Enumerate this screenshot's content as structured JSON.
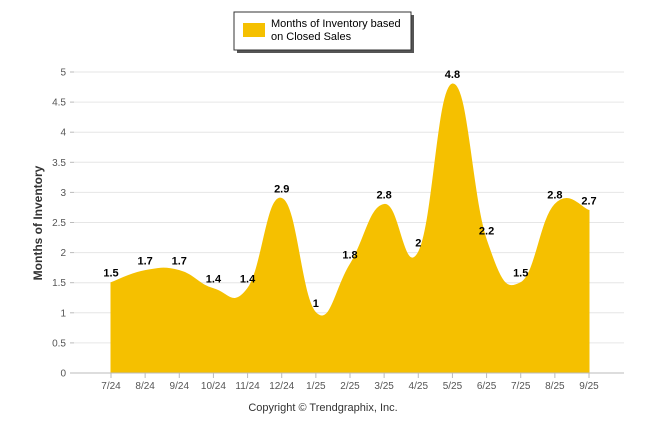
{
  "chart_data": {
    "type": "area",
    "categories": [
      "7/24",
      "8/24",
      "9/24",
      "10/24",
      "11/24",
      "12/24",
      "1/25",
      "2/25",
      "3/25",
      "4/25",
      "5/25",
      "6/25",
      "7/25",
      "8/25",
      "9/25"
    ],
    "series": [
      {
        "name": "Months of Inventory based on Closed Sales",
        "values": [
          1.5,
          1.7,
          1.7,
          1.4,
          1.4,
          2.9,
          1,
          1.8,
          2.8,
          2,
          4.8,
          2.2,
          1.5,
          2.8,
          2.7
        ],
        "labels": [
          "1.5",
          "1.7",
          "1.7",
          "1.4",
          "1.4",
          "2.9",
          "1",
          "1.8",
          "2.8",
          "2",
          "4.8",
          "2.2",
          "1.5",
          "2.8",
          "2.7"
        ],
        "color": "#f5c000"
      }
    ],
    "legend": {
      "line1": "Months of Inventory based",
      "line2": "on Closed Sales",
      "position": "top-center"
    },
    "ylabel": "Months of Inventory",
    "xlabel": "",
    "ylim": [
      0,
      5
    ],
    "yticks": [
      "0",
      "0.5",
      "1",
      "1.5",
      "2",
      "2.5",
      "3",
      "3.5",
      "4",
      "4.5",
      "5"
    ],
    "grid": true
  },
  "footer": {
    "copyright": "Copyright © Trendgraphix, Inc."
  }
}
